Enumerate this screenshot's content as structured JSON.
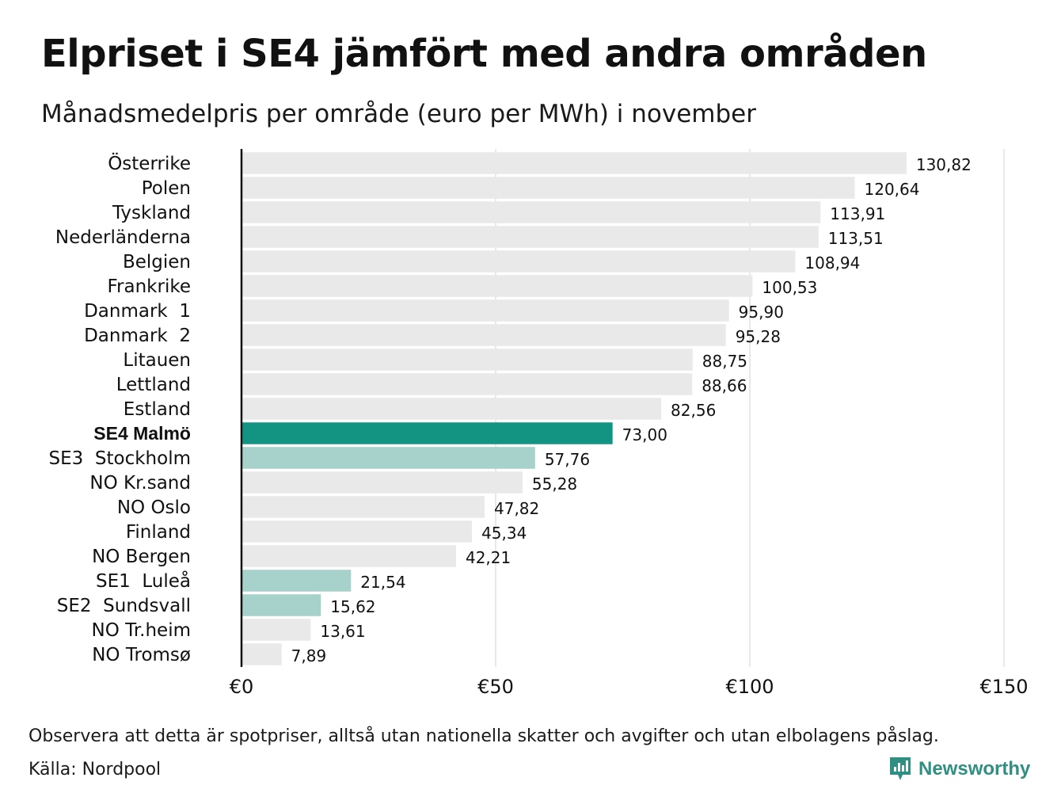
{
  "title": "Elpriset i SE4 jämfört med andra områden",
  "subtitle": "Månadsmedelpris per område (euro per MWh) i november",
  "footer": {
    "note": "Observera att detta är spotpriser, alltså utan nationella skatter och avgifter och utan elbolagens påslag.",
    "source": "Källa: Nordpool",
    "brand": "Newsworthy",
    "brand_icon": "newsworthy-logo-icon"
  },
  "colors": {
    "default_bar": "#e9e9e9",
    "highlight_bar": "#139482",
    "swedish_bar": "#a7d1cb",
    "grid": "#d0d0d0",
    "axis": "#111111",
    "brand": "#2f8f83"
  },
  "chart_data": {
    "type": "bar",
    "orientation": "horizontal",
    "categories": [
      "Österrike",
      "Polen",
      "Tyskland",
      "Nederländerna",
      "Belgien",
      "Frankrike",
      "Danmark  1",
      "Danmark  2",
      "Litauen",
      "Lettland",
      "Estland",
      "SE4 Malmö",
      "SE3  Stockholm",
      "NO Kr.sand",
      "NO Oslo",
      "Finland",
      "NO Bergen",
      "SE1  Luleå",
      "SE2  Sundsvall",
      "NO Tr.heim",
      "NO Tromsø"
    ],
    "values": [
      130.82,
      120.64,
      113.91,
      113.51,
      108.94,
      100.53,
      95.9,
      95.28,
      88.75,
      88.66,
      82.56,
      73.0,
      57.76,
      55.28,
      47.82,
      45.34,
      42.21,
      21.54,
      15.62,
      13.61,
      7.89
    ],
    "value_labels": [
      "130,82",
      "120,64",
      "113,91",
      "113,51",
      "108,94",
      "100,53",
      "95,90",
      "95,28",
      "88,75",
      "88,66",
      "82,56",
      "73,00",
      "57,76",
      "55,28",
      "47,82",
      "45,34",
      "42,21",
      "21,54",
      "15,62",
      "13,61",
      "7,89"
    ],
    "bar_style": [
      "default",
      "default",
      "default",
      "default",
      "default",
      "default",
      "default",
      "default",
      "default",
      "default",
      "default",
      "highlight",
      "swedish",
      "default",
      "default",
      "default",
      "default",
      "swedish",
      "swedish",
      "default",
      "default"
    ],
    "xlim": [
      0,
      150
    ],
    "xticks": [
      0,
      50,
      100,
      150
    ],
    "xtick_labels": [
      "€0",
      "€50",
      "€100",
      "€150"
    ],
    "grid": true,
    "xlabel": "",
    "ylabel": ""
  }
}
